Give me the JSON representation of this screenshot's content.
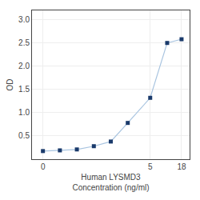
{
  "chart_data": {
    "type": "line",
    "x": [
      0.0625,
      0.125,
      0.25,
      0.5,
      1,
      2,
      5,
      10,
      18
    ],
    "series": [
      {
        "type": "line",
        "color": "#a8c4e0",
        "values": [
          0.175,
          0.19,
          0.21,
          0.28,
          0.38,
          0.78,
          1.32,
          2.5,
          2.58
        ]
      },
      {
        "type": "scatter",
        "color": "#1a3a6b",
        "marker": "square",
        "values": [
          0.175,
          0.19,
          0.21,
          0.28,
          0.38,
          0.78,
          1.32,
          2.5,
          2.58
        ]
      }
    ],
    "xlabel": "Human LYSMD3\nConcentration (ng/ml)",
    "ylabel": "OD",
    "log": "x",
    "xlim": [
      0.04,
      25
    ],
    "xticks": [
      {
        "value": 0.0625,
        "label": "0"
      },
      5,
      18
    ],
    "ylim": [
      0.0,
      3.2
    ],
    "yticks": [
      0.5,
      {
        "value": 1.0,
        "label": "1.0"
      },
      1.5,
      {
        "value": 2.0,
        "label": "2.0"
      },
      2.5,
      {
        "value": 3.0,
        "label": "3.0"
      }
    ],
    "grid": true
  }
}
